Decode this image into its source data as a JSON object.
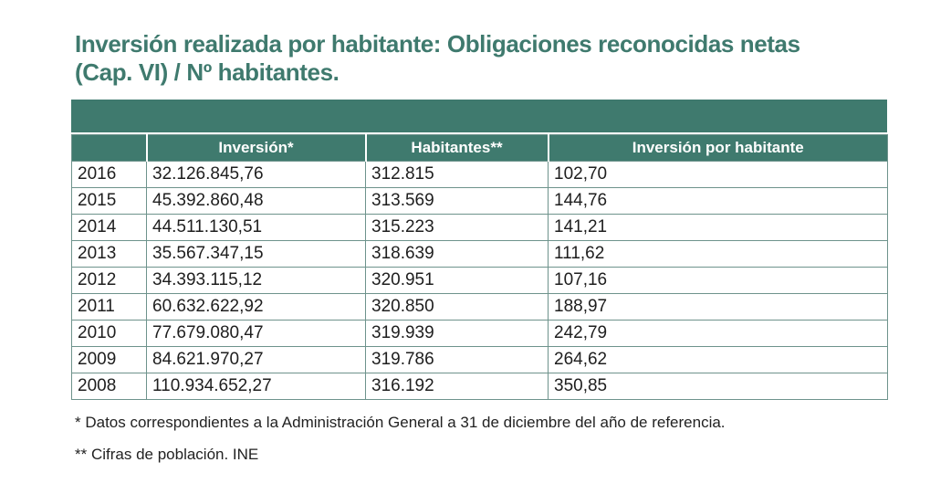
{
  "title": "Inversión realizada por habitante: Obligaciones reconocidas netas (Cap. VI) / Nº habitantes.",
  "colors": {
    "teal": "#3F7A6E",
    "border": "#6E938C",
    "body_text": "#1E1E1E",
    "header_text": "#FFFFFF"
  },
  "table": {
    "columns": [
      "",
      "Inversión*",
      "Habitantes**",
      "Inversión por habitante"
    ],
    "rows": [
      {
        "year": "2016",
        "inversion": "32.126.845,76",
        "habitantes": "312.815",
        "inversion_por_habitante": "102,70"
      },
      {
        "year": "2015",
        "inversion": "45.392.860,48",
        "habitantes": "313.569",
        "inversion_por_habitante": "144,76"
      },
      {
        "year": "2014",
        "inversion": "44.511.130,51",
        "habitantes": "315.223",
        "inversion_por_habitante": "141,21"
      },
      {
        "year": "2013",
        "inversion": "35.567.347,15",
        "habitantes": "318.639",
        "inversion_por_habitante": "111,62"
      },
      {
        "year": "2012",
        "inversion": "34.393.115,12",
        "habitantes": "320.951",
        "inversion_por_habitante": "107,16"
      },
      {
        "year": "2011",
        "inversion": "60.632.622,92",
        "habitantes": "320.850",
        "inversion_por_habitante": "188,97"
      },
      {
        "year": "2010",
        "inversion": "77.679.080,47",
        "habitantes": "319.939",
        "inversion_por_habitante": "242,79"
      },
      {
        "year": "2009",
        "inversion": "84.621.970,27",
        "habitantes": "319.786",
        "inversion_por_habitante": "264,62"
      },
      {
        "year": "2008",
        "inversion": "110.934.652,27",
        "habitantes": "316.192",
        "inversion_por_habitante": "350,85"
      }
    ]
  },
  "footnotes": [
    "* Datos correspondientes a la Administración General a 31 de diciembre del año de referencia.",
    "** Cifras de población. INE"
  ]
}
